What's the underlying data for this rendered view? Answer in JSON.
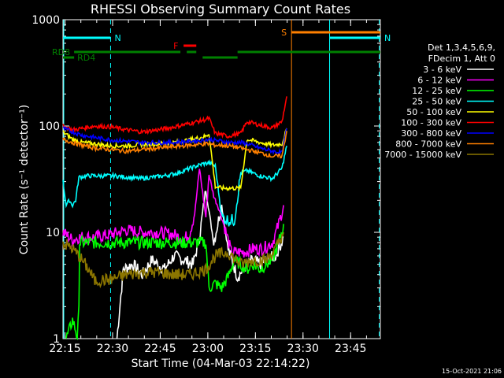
{
  "chart_data": {
    "type": "line",
    "title": "RHESSI Observing Summary Count Rates",
    "xlabel": "Start Time (04-Mar-03 22:14:22)",
    "ylabel": "Count Rate (s⁻¹ detector⁻¹)",
    "y_scale": "log",
    "ylim": [
      1,
      1000
    ],
    "xlim_minutes": [
      0,
      100
    ],
    "x_tick_labels": [
      "22:15",
      "22:30",
      "22:45",
      "23:00",
      "23:15",
      "23:30",
      "23:45"
    ],
    "x_tick_minutes": [
      0.63,
      15.63,
      30.63,
      45.63,
      60.63,
      75.63,
      90.63
    ],
    "y_tick_labels": [
      "1",
      "10",
      "100",
      "1000"
    ],
    "y_tick_values": [
      1,
      10,
      100,
      1000
    ],
    "legend": {
      "header": [
        "Det 1,3,4,5,6,9,",
        "FDecim 1, Att 0"
      ],
      "placement": "right"
    },
    "series": [
      {
        "name": "3 - 6 keV",
        "color": "#ffffff",
        "x": [
          17,
          19,
          22,
          25,
          28,
          32,
          35,
          38,
          41,
          43,
          45,
          47.5,
          50,
          52,
          55,
          58,
          60,
          62,
          64,
          67,
          69.5
        ],
        "y": [
          1.0,
          4.5,
          5.0,
          4.0,
          5.5,
          4.5,
          6.0,
          5.5,
          5.0,
          9.0,
          25.0,
          8.0,
          18.0,
          7.0,
          3.8,
          5.0,
          5.5,
          5.0,
          5.5,
          6.0,
          9.0
        ]
      },
      {
        "name": "6 - 12 keV",
        "color": "#ff00ff",
        "x": [
          0,
          3,
          5,
          10,
          15,
          20,
          25,
          30,
          35,
          38,
          40,
          41.5,
          43,
          45,
          46,
          47.5,
          49,
          51,
          53,
          55,
          57,
          60,
          63,
          66,
          68,
          69.5
        ],
        "y": [
          10,
          8.5,
          9.0,
          9.0,
          9.5,
          10.5,
          10.0,
          10.0,
          9.5,
          8.5,
          10.0,
          15.0,
          40.0,
          14.0,
          35.0,
          22.0,
          17.0,
          11.0,
          6.5,
          6.5,
          6.5,
          7.0,
          7.0,
          8.0,
          12.0,
          18.0
        ]
      },
      {
        "name": "12 - 25 keV",
        "color": "#00ff00",
        "x": [
          1,
          2,
          3,
          4,
          4.5,
          5,
          5.2,
          10,
          15,
          20,
          25,
          30,
          35,
          40,
          45,
          46,
          48,
          50,
          52,
          54,
          56,
          58,
          60,
          62,
          64,
          66,
          68,
          69.5
        ],
        "y": [
          1.0,
          1.2,
          1.5,
          1.2,
          1.0,
          1.8,
          8.0,
          8.0,
          8.0,
          8.0,
          8.0,
          8.0,
          8.0,
          8.0,
          8.0,
          3.0,
          3.3,
          3.0,
          3.8,
          5.5,
          5.0,
          4.5,
          5.0,
          4.5,
          5.0,
          5.5,
          8.0,
          12.0
        ]
      },
      {
        "name": "25 - 50 keV",
        "color": "#00ffff",
        "x": [
          0,
          1,
          2,
          3,
          4,
          5,
          8,
          12,
          16,
          20,
          24,
          28,
          32,
          36,
          40,
          44,
          46,
          48,
          50,
          52,
          54,
          56,
          58,
          62,
          66,
          69,
          70.5
        ],
        "y": [
          30,
          18,
          20,
          18,
          20,
          33,
          34,
          34,
          34,
          33,
          32,
          33,
          34,
          36,
          40,
          44,
          45,
          42,
          14,
          13,
          13,
          36,
          38,
          34,
          32,
          40,
          65
        ]
      },
      {
        "name": "50 - 100 keV",
        "color": "#ffff00",
        "x": [
          0,
          3,
          6,
          10,
          15,
          20,
          25,
          30,
          35,
          40,
          45,
          46,
          48,
          50,
          52,
          54,
          56,
          58,
          62,
          66,
          69,
          70.5
        ],
        "y": [
          88,
          75,
          70,
          68,
          65,
          65,
          67,
          68,
          70,
          74,
          80,
          85,
          27,
          26,
          26,
          26,
          26,
          75,
          70,
          66,
          68,
          95
        ]
      },
      {
        "name": "100 - 300 keV",
        "color": "#ff0000",
        "x": [
          0,
          3,
          6,
          10,
          15,
          20,
          25,
          30,
          35,
          40,
          45,
          46,
          48,
          50,
          52,
          54,
          56,
          58,
          62,
          66,
          69,
          70.5
        ],
        "y": [
          100,
          92,
          95,
          100,
          98,
          92,
          88,
          92,
          98,
          106,
          115,
          118,
          85,
          83,
          80,
          83,
          85,
          110,
          102,
          96,
          110,
          190
        ]
      },
      {
        "name": "300 - 800 keV",
        "color": "#0000ff",
        "x": [
          0,
          3,
          6,
          10,
          15,
          20,
          25,
          30,
          35,
          40,
          45,
          46,
          48,
          50,
          52,
          54,
          56,
          58,
          62,
          66,
          69,
          70.5
        ],
        "y": [
          95,
          88,
          82,
          78,
          74,
          72,
          70,
          70,
          70,
          72,
          74,
          75,
          73,
          72,
          70,
          70,
          70,
          68,
          62,
          58,
          56,
          95
        ]
      },
      {
        "name": "800 - 7000 keV",
        "color": "#ff8000",
        "x": [
          0,
          3,
          6,
          10,
          15,
          20,
          25,
          30,
          35,
          40,
          45,
          46,
          48,
          50,
          52,
          54,
          56,
          58,
          62,
          66,
          69,
          70.5
        ],
        "y": [
          75,
          70,
          66,
          62,
          60,
          58,
          60,
          62,
          64,
          66,
          68,
          68,
          66,
          66,
          65,
          64,
          62,
          60,
          56,
          52,
          52,
          90
        ]
      },
      {
        "name": "7000 - 15000 keV",
        "color": "#8b7500",
        "x": [
          0,
          3,
          5,
          8,
          10,
          15,
          20,
          25,
          30,
          35,
          40,
          45,
          48,
          52,
          56,
          60,
          64,
          67,
          69.5
        ],
        "y": [
          8.0,
          7.0,
          6.0,
          4.5,
          3.5,
          3.6,
          4.0,
          4.2,
          4.2,
          4.0,
          4.0,
          4.5,
          6.0,
          6.5,
          5.0,
          5.5,
          5.5,
          7.0,
          10.0
        ]
      }
    ],
    "status_bars": [
      {
        "label": "N",
        "color": "#00ffff",
        "level": 0,
        "start": 0,
        "end": 15
      },
      {
        "label": "N",
        "color": "#00ffff",
        "level": 0,
        "start": 84,
        "end": 100
      },
      {
        "label": "S",
        "color": "#ff8000",
        "level": 1,
        "start": 72,
        "end": 100
      },
      {
        "label": "F",
        "color": "#ff0000",
        "level": 2,
        "start": 38,
        "end": 42
      },
      {
        "label": "RD8",
        "color": "#008000",
        "level": 3,
        "start": 3.5,
        "end": 37
      },
      {
        "label": "",
        "color": "#008000",
        "level": 3,
        "start": 55,
        "end": 100
      },
      {
        "label": "",
        "color": "#008000",
        "level": 3,
        "start": 39,
        "end": 42
      },
      {
        "label": "",
        "color": "#008000",
        "level": 4,
        "start": 44,
        "end": 55
      },
      {
        "label": "RD4",
        "color": "#008000",
        "level": 4,
        "start": 0,
        "end": 3.5
      }
    ],
    "vertical_markers": [
      {
        "minute": 15,
        "color": "#00ffff",
        "style": "dashed"
      },
      {
        "minute": 0,
        "color": "#00ffff",
        "style": "solid"
      },
      {
        "minute": 84,
        "color": "#00ffff",
        "style": "solid"
      },
      {
        "minute": 72,
        "color": "#ff8000",
        "style": "solid"
      },
      {
        "minute": 100,
        "color": "#ff8000",
        "style": "dashed"
      },
      {
        "minute": 100,
        "color": "#00ffff",
        "style": "dashed"
      }
    ],
    "timestamp": "15-Oct-2021 21:06"
  }
}
